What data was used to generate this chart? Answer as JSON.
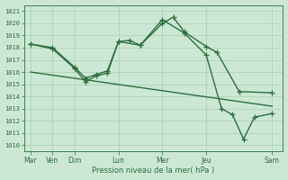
{
  "background_color": "#cce8d4",
  "grid_color": "#a8ceb4",
  "line_color": "#2d6e3e",
  "title": "Pression niveau de la mer( hPa )",
  "ylim": [
    1009.5,
    1021.5
  ],
  "yticks": [
    1010,
    1011,
    1012,
    1013,
    1014,
    1015,
    1016,
    1017,
    1018,
    1019,
    1020,
    1021
  ],
  "x_labels": [
    "Mar",
    "Ven",
    "Dim",
    "Lun",
    "Mer",
    "Jeu",
    "Sam"
  ],
  "x_tick_pos": [
    0,
    1,
    2,
    4,
    6,
    8,
    11
  ],
  "xlim": [
    -0.3,
    11.5
  ],
  "line1_x": [
    0,
    1,
    2,
    2.5,
    3,
    3.5,
    4,
    4.5,
    5,
    6,
    6.5,
    7,
    8,
    8.5,
    9.5,
    11
  ],
  "line1_y": [
    1018.3,
    1018.0,
    1016.4,
    1015.5,
    1015.8,
    1016.1,
    1018.5,
    1018.6,
    1018.2,
    1020.0,
    1020.5,
    1019.3,
    1018.1,
    1017.6,
    1014.4,
    1014.3
  ],
  "line2_x": [
    0,
    1,
    2,
    2.5,
    3,
    3.5,
    4,
    5,
    6,
    7,
    8,
    8.7,
    9.2,
    9.7,
    10.2,
    11
  ],
  "line2_y": [
    1018.3,
    1017.9,
    1016.3,
    1015.2,
    1015.7,
    1015.9,
    1018.5,
    1018.2,
    1020.3,
    1019.2,
    1017.4,
    1013.0,
    1012.5,
    1010.5,
    1012.3,
    1012.6
  ],
  "line3_x": [
    0,
    11
  ],
  "line3_y": [
    1016.0,
    1013.2
  ],
  "marker_size": 4,
  "line_width": 1.0
}
